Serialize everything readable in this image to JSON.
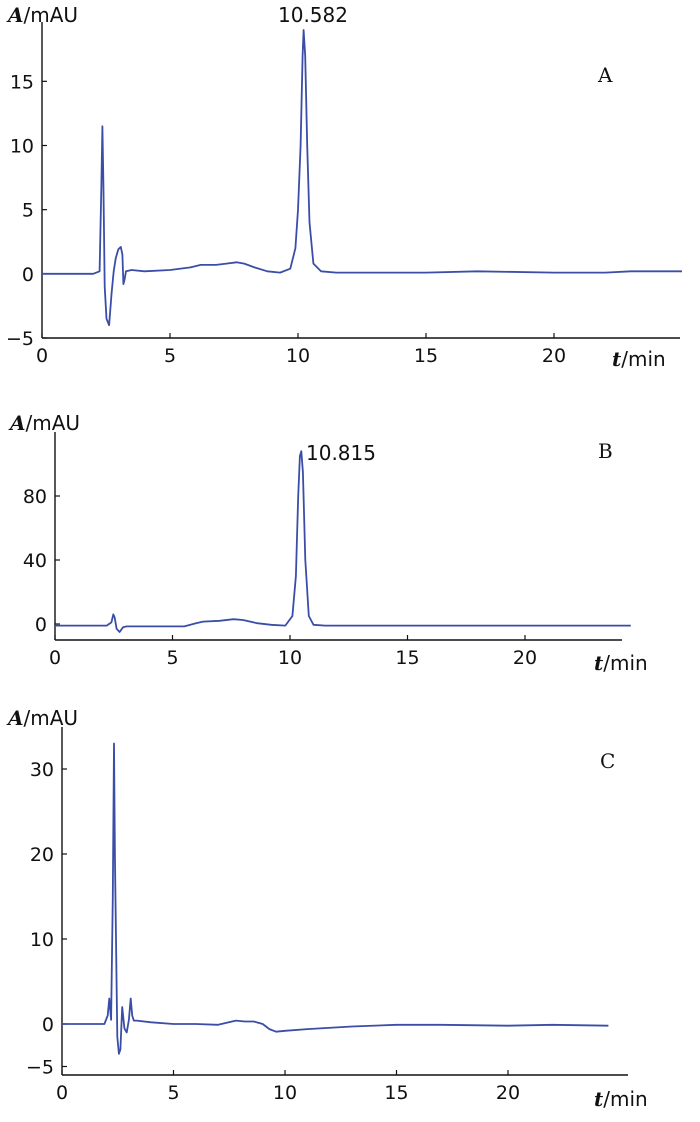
{
  "chart_data": [
    {
      "type": "line",
      "panel_label": "A",
      "xlabel": {
        "var": "t",
        "unit": "/min"
      },
      "ylabel": {
        "var": "A",
        "unit": "/mAU"
      },
      "xlim": [
        0,
        25
      ],
      "ylim": [
        -5,
        19
      ],
      "xticks": [
        0,
        5,
        10,
        15,
        20
      ],
      "yticks": [
        -5,
        0,
        5,
        10,
        15
      ],
      "grid": false,
      "peak_annotation": {
        "text": "10.582",
        "x": 10.2,
        "y": 19
      },
      "color": "#3a4ea8",
      "series": [
        {
          "x": [
            0,
            2.0,
            2.25,
            2.32,
            2.36,
            2.4,
            2.45,
            2.52,
            2.62,
            2.72,
            2.8,
            2.88,
            2.98,
            3.08,
            3.14,
            3.18,
            3.22,
            3.28,
            3.5,
            4.0,
            5.0,
            5.8,
            6.2,
            6.8,
            7.2,
            7.6,
            7.9,
            8.3,
            8.8,
            9.3,
            9.7,
            9.9,
            10.0,
            10.1,
            10.18,
            10.22,
            10.28,
            10.36,
            10.45,
            10.6,
            10.9,
            11.5,
            13.0,
            15.0,
            17.0,
            20.0,
            22.0,
            23.0,
            25.0
          ],
          "y": [
            0,
            0,
            0.2,
            7.0,
            11.5,
            7.0,
            -1.0,
            -3.5,
            -4.0,
            -1.5,
            0.2,
            1.2,
            1.9,
            2.1,
            1.5,
            -0.8,
            -0.5,
            0.2,
            0.3,
            0.2,
            0.3,
            0.5,
            0.7,
            0.7,
            0.8,
            0.9,
            0.8,
            0.5,
            0.2,
            0.1,
            0.4,
            2.0,
            5.0,
            10.0,
            17.0,
            19.0,
            17.0,
            10.0,
            4.0,
            0.8,
            0.2,
            0.1,
            0.1,
            0.1,
            0.2,
            0.1,
            0.1,
            0.2,
            0.2
          ]
        }
      ]
    },
    {
      "type": "line",
      "panel_label": "B",
      "xlabel": {
        "var": "t",
        "unit": "/min"
      },
      "ylabel": {
        "var": "A",
        "unit": "/mAU"
      },
      "xlim": [
        0,
        25
      ],
      "ylim": [
        -10,
        115
      ],
      "xticks": [
        0,
        5,
        10,
        15,
        20
      ],
      "yticks": [
        0,
        40,
        80
      ],
      "grid": false,
      "peak_annotation": {
        "text": "10.815",
        "x": 10.5,
        "y": 108
      },
      "color": "#3a4ea8",
      "series": [
        {
          "x": [
            0,
            2.2,
            2.4,
            2.48,
            2.54,
            2.62,
            2.75,
            2.9,
            3.05,
            3.2,
            4.0,
            5.5,
            6.0,
            6.3,
            7.0,
            7.6,
            8.0,
            8.6,
            9.2,
            9.8,
            10.1,
            10.25,
            10.35,
            10.42,
            10.48,
            10.55,
            10.65,
            10.8,
            11.0,
            11.5,
            15.0,
            20.0,
            23.0,
            24.5
          ],
          "y": [
            -1,
            -1,
            1.0,
            6.0,
            4.0,
            -3.0,
            -5.0,
            -2.0,
            -1.5,
            -1.5,
            -1.5,
            -1.5,
            0.5,
            1.5,
            2.0,
            3.0,
            2.5,
            0.5,
            -0.5,
            -1.0,
            5.0,
            30.0,
            80.0,
            105.0,
            108.0,
            95.0,
            40.0,
            5.0,
            -0.5,
            -1.0,
            -1.0,
            -1.0,
            -1.0,
            -1.0
          ]
        }
      ]
    },
    {
      "type": "line",
      "panel_label": "C",
      "xlabel": {
        "var": "t",
        "unit": "/min"
      },
      "ylabel": {
        "var": "A",
        "unit": "/mAU"
      },
      "xlim": [
        0,
        25
      ],
      "ylim": [
        -6,
        34
      ],
      "xticks": [
        0,
        5,
        10,
        15,
        20
      ],
      "yticks": [
        -5,
        0,
        10,
        20,
        30
      ],
      "grid": false,
      "color": "#3a4ea8",
      "series": [
        {
          "x": [
            0,
            1.9,
            2.05,
            2.12,
            2.2,
            2.28,
            2.33,
            2.37,
            2.42,
            2.48,
            2.55,
            2.62,
            2.7,
            2.8,
            2.9,
            3.0,
            3.08,
            3.15,
            3.22,
            3.35,
            4.0,
            5.0,
            6.0,
            7.0,
            7.8,
            8.2,
            8.6,
            9.0,
            9.3,
            9.6,
            10.0,
            11.0,
            13.0,
            15.0,
            17.0,
            20.0,
            22.0,
            24.5
          ],
          "y": [
            0,
            0,
            1.0,
            3.0,
            0.5,
            15.0,
            33.0,
            20.0,
            10.0,
            -1.5,
            -3.5,
            -3.0,
            2.0,
            -0.5,
            -1.0,
            0.5,
            3.0,
            1.0,
            0.4,
            0.4,
            0.2,
            0.0,
            0.0,
            -0.1,
            0.4,
            0.3,
            0.3,
            0.0,
            -0.6,
            -0.9,
            -0.8,
            -0.6,
            -0.3,
            -0.1,
            -0.1,
            -0.2,
            -0.1,
            -0.2
          ]
        }
      ]
    }
  ]
}
